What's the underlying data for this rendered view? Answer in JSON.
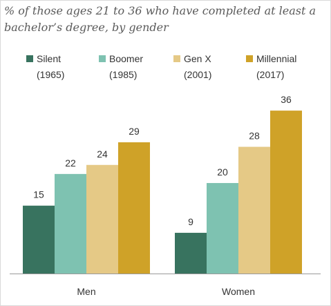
{
  "chart_data": {
    "type": "bar",
    "title": "% of those ages 21 to 36 who have completed at least a bachelor’s degree, by gender",
    "categories": [
      "Men",
      "Women"
    ],
    "series": [
      {
        "name": "Silent",
        "year": "(1965)",
        "color": "#38735f",
        "values": [
          15,
          9
        ]
      },
      {
        "name": "Boomer",
        "year": "(1985)",
        "color": "#7ec2b1",
        "values": [
          22,
          20
        ]
      },
      {
        "name": "Gen X",
        "year": "(2001)",
        "color": "#e5c986",
        "values": [
          24,
          28
        ]
      },
      {
        "name": "Millennial",
        "year": "(2017)",
        "color": "#cfa228",
        "values": [
          29,
          36
        ]
      }
    ],
    "ylim": [
      0,
      40
    ],
    "grid": false,
    "legend": "top"
  }
}
